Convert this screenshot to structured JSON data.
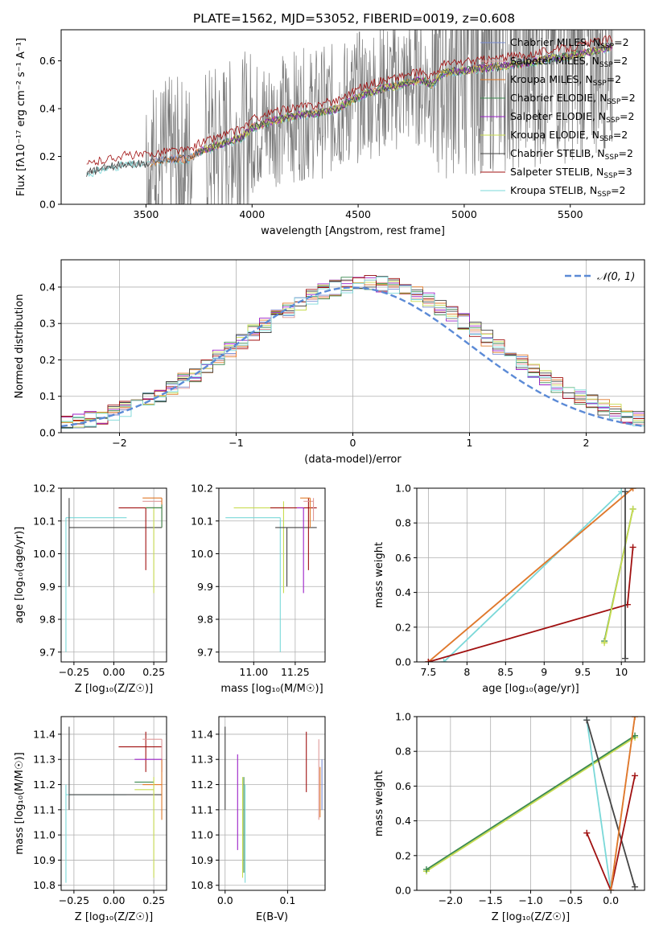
{
  "figure_title": "PLATE=1562, MJD=53052, FIBERID=0019, z=0.608",
  "colors": {
    "chabrier_miles": "#7b8fd6",
    "salpeter_miles": "#e09a9a",
    "kroupa_miles": "#e07a2a",
    "chabrier_elodie": "#3c8a50",
    "salpeter_elodie": "#9b20c8",
    "kroupa_elodie": "#c8dc50",
    "chabrier_stelib": "#454545",
    "salpeter_stelib": "#a01010",
    "kroupa_stelib": "#7ad8d8",
    "data": "#7a7a7a",
    "normal": "#5b8ad6"
  },
  "legend_spectrum": [
    {
      "key": "chabrier_miles",
      "prefix": "Chabrier MILES, N",
      "sub": "SSP",
      "suffix": "=2"
    },
    {
      "key": "salpeter_miles",
      "prefix": "Salpeter MILES, N",
      "sub": "SSP",
      "suffix": "=2"
    },
    {
      "key": "kroupa_miles",
      "prefix": "Kroupa MILES, N",
      "sub": "SSP",
      "suffix": "=2"
    },
    {
      "key": "chabrier_elodie",
      "prefix": "Chabrier ELODIE, N",
      "sub": "SSP",
      "suffix": "=2"
    },
    {
      "key": "salpeter_elodie",
      "prefix": "Salpeter ELODIE, N",
      "sub": "SSP",
      "suffix": "=2"
    },
    {
      "key": "kroupa_elodie",
      "prefix": "Kroupa ELODIE, N",
      "sub": "SSP",
      "suffix": "=2"
    },
    {
      "key": "chabrier_stelib",
      "prefix": "Chabrier STELIB, N",
      "sub": "SSP",
      "suffix": "=2"
    },
    {
      "key": "salpeter_stelib",
      "prefix": "Salpeter STELIB, N",
      "sub": "SSP",
      "suffix": "=3"
    },
    {
      "key": "kroupa_stelib",
      "prefix": "Kroupa STELIB, N",
      "sub": "SSP",
      "suffix": "=2"
    }
  ],
  "chart_data": [
    {
      "id": "spectrum",
      "type": "line",
      "xlabel": "wavelength [Angstrom, rest frame]",
      "ylabel": "Flux [fλ10⁻¹⁷ erg cm⁻² s⁻¹ A⁻¹]",
      "xlim": [
        3100,
        5850
      ],
      "ylim": [
        0,
        0.73
      ],
      "xticks": [
        3500,
        4000,
        4500,
        5000,
        5500
      ],
      "yticks": [
        0.0,
        0.2,
        0.4,
        0.6
      ],
      "grid": false,
      "legend": "upper-right",
      "model_continuum": [
        [
          3220,
          0.13
        ],
        [
          3300,
          0.15
        ],
        [
          3400,
          0.17
        ],
        [
          3500,
          0.17
        ],
        [
          3600,
          0.19
        ],
        [
          3700,
          0.19
        ],
        [
          3750,
          0.22
        ],
        [
          3850,
          0.25
        ],
        [
          3950,
          0.28
        ],
        [
          4000,
          0.32
        ],
        [
          4100,
          0.35
        ],
        [
          4200,
          0.37
        ],
        [
          4300,
          0.38
        ],
        [
          4400,
          0.4
        ],
        [
          4500,
          0.45
        ],
        [
          4600,
          0.48
        ],
        [
          4700,
          0.5
        ],
        [
          4800,
          0.52
        ],
        [
          4850,
          0.5
        ],
        [
          4900,
          0.55
        ],
        [
          5000,
          0.56
        ],
        [
          5100,
          0.57
        ],
        [
          5200,
          0.58
        ],
        [
          5300,
          0.59
        ],
        [
          5400,
          0.61
        ],
        [
          5500,
          0.62
        ],
        [
          5600,
          0.64
        ],
        [
          5700,
          0.66
        ]
      ]
    },
    {
      "id": "residuals",
      "type": "histogram",
      "xlabel": "(data-model)/error",
      "ylabel": "Normed distribution",
      "xlim": [
        -2.5,
        2.5
      ],
      "ylim": [
        0,
        0.475
      ],
      "xticks": [
        -2,
        -1,
        0,
        1,
        2
      ],
      "yticks": [
        0.0,
        0.1,
        0.2,
        0.3,
        0.4
      ],
      "grid": true,
      "legend": "upper-right",
      "normal_label": "𝒩(0, 1)",
      "bin_width": 0.1
    },
    {
      "id": "age_vs_Z",
      "type": "scatter",
      "xlabel": "Z [log₁₀(Z/Z☉)]",
      "ylabel": "age  [log₁₀(age/yr)]",
      "xlim": [
        -0.33,
        0.33
      ],
      "ylim": [
        9.67,
        10.2
      ],
      "xticks": [
        -0.25,
        0.0,
        0.25
      ],
      "xticklabels": [
        "−0.25",
        "0.00",
        "0.25"
      ],
      "yticks": [
        9.7,
        9.8,
        9.9,
        10.0,
        10.1,
        10.2
      ],
      "grid": true,
      "errorbars": [
        {
          "key": "kroupa_stelib",
          "x": -0.3,
          "y": 10.11,
          "xlo": -0.3,
          "xhi": 0.08,
          "ylo": 9.7,
          "yhi": 10.11
        },
        {
          "key": "chabrier_stelib",
          "x": -0.28,
          "y": 10.08,
          "xlo": -0.28,
          "xhi": 0.3,
          "ylo": 9.9,
          "yhi": 10.17
        },
        {
          "key": "salpeter_stelib",
          "x": 0.2,
          "y": 10.14,
          "xlo": 0.03,
          "xhi": 0.3,
          "ylo": 9.95,
          "yhi": 10.14
        },
        {
          "key": "kroupa_elodie",
          "x": 0.25,
          "y": 10.14,
          "xlo": 0.2,
          "xhi": 0.3,
          "ylo": 9.88,
          "yhi": 10.14
        },
        {
          "key": "salpeter_miles",
          "x": 0.3,
          "y": 10.16,
          "xlo": 0.18,
          "xhi": 0.3,
          "ylo": 10.08,
          "yhi": 10.17
        },
        {
          "key": "kroupa_miles",
          "x": 0.3,
          "y": 10.17,
          "xlo": 0.18,
          "xhi": 0.3,
          "ylo": 10.08,
          "yhi": 10.17
        },
        {
          "key": "chabrier_elodie",
          "x": 0.3,
          "y": 10.14,
          "xlo": 0.2,
          "xhi": 0.3,
          "ylo": 10.08,
          "yhi": 10.15
        }
      ]
    },
    {
      "id": "age_vs_mass",
      "type": "scatter",
      "xlabel": "mass [log₁₀(M/M☉)]",
      "ylabel": "",
      "xlim": [
        10.79,
        11.43
      ],
      "ylim": [
        9.67,
        10.2
      ],
      "xticks": [
        11.0,
        11.25
      ],
      "xticklabels": [
        "11.00",
        "11.25"
      ],
      "yticks": [
        9.7,
        9.8,
        9.9,
        10.0,
        10.1,
        10.2
      ],
      "grid": true,
      "errorbars": [
        {
          "key": "kroupa_stelib",
          "x": 11.16,
          "y": 10.11,
          "xlo": 10.83,
          "xhi": 11.16,
          "ylo": 9.7,
          "yhi": 10.11
        },
        {
          "key": "kroupa_elodie",
          "x": 11.18,
          "y": 10.14,
          "xlo": 10.88,
          "xhi": 11.18,
          "ylo": 9.88,
          "yhi": 10.16
        },
        {
          "key": "chabrier_stelib",
          "x": 11.2,
          "y": 10.08,
          "xlo": 11.13,
          "xhi": 11.38,
          "ylo": 9.9,
          "yhi": 10.08
        },
        {
          "key": "salpeter_stelib",
          "x": 11.33,
          "y": 10.14,
          "xlo": 11.1,
          "xhi": 11.38,
          "ylo": 9.95,
          "yhi": 10.17
        },
        {
          "key": "salpeter_elodie",
          "x": 11.3,
          "y": 10.14,
          "xlo": 11.26,
          "xhi": 11.3,
          "ylo": 9.88,
          "yhi": 10.14
        },
        {
          "key": "salpeter_miles",
          "x": 11.36,
          "y": 10.16,
          "xlo": 11.3,
          "xhi": 11.36,
          "ylo": 10.1,
          "yhi": 10.17
        },
        {
          "key": "kroupa_miles",
          "x": 11.34,
          "y": 10.17,
          "xlo": 11.28,
          "xhi": 11.34,
          "ylo": 10.08,
          "yhi": 10.17
        }
      ]
    },
    {
      "id": "massweight_vs_age",
      "type": "line",
      "xlabel": "age  [log₁₀(age/yr)]",
      "ylabel": "mass weight",
      "xlim": [
        7.35,
        10.3
      ],
      "ylim": [
        0,
        1
      ],
      "xticks": [
        7.5,
        8.0,
        8.5,
        9.0,
        9.5,
        10.0
      ],
      "yticks": [
        0.0,
        0.2,
        0.4,
        0.6,
        0.8,
        1.0
      ],
      "grid": true,
      "series": [
        {
          "key": "kroupa_stelib",
          "points": [
            [
              7.7,
              0.0
            ],
            [
              10.0,
              0.98
            ]
          ]
        },
        {
          "key": "salpeter_miles",
          "points": [
            [
              7.5,
              0.0
            ],
            [
              10.15,
              1.0
            ]
          ]
        },
        {
          "key": "kroupa_miles",
          "points": [
            [
              7.5,
              0.0
            ],
            [
              10.15,
              1.0
            ]
          ]
        },
        {
          "key": "salpeter_stelib",
          "points": [
            [
              7.5,
              0.0
            ],
            [
              10.08,
              0.33
            ],
            [
              10.15,
              0.66
            ]
          ]
        },
        {
          "key": "chabrier_elodie",
          "points": [
            [
              9.78,
              0.12
            ],
            [
              10.15,
              0.88
            ]
          ]
        },
        {
          "key": "kroupa_elodie",
          "points": [
            [
              9.78,
              0.11
            ],
            [
              10.15,
              0.88
            ]
          ]
        },
        {
          "key": "chabrier_stelib",
          "points": [
            [
              10.05,
              0.02
            ],
            [
              10.05,
              0.98
            ]
          ]
        }
      ]
    },
    {
      "id": "mass_vs_Z",
      "type": "scatter",
      "xlabel": "Z [log₁₀(Z/Z☉)]",
      "ylabel": "mass [log₁₀(M/M☉)]",
      "xlim": [
        -0.33,
        0.33
      ],
      "ylim": [
        10.78,
        11.47
      ],
      "xticks": [
        -0.25,
        0.0,
        0.25
      ],
      "xticklabels": [
        "−0.25",
        "0.00",
        "0.25"
      ],
      "yticks": [
        10.8,
        10.9,
        11.0,
        11.1,
        11.2,
        11.3,
        11.4
      ],
      "grid": true,
      "errorbars": [
        {
          "key": "kroupa_stelib",
          "x": -0.3,
          "y": 11.16,
          "xlo": -0.3,
          "xhi": 0.08,
          "ylo": 10.81,
          "yhi": 11.2
        },
        {
          "key": "chabrier_stelib",
          "x": -0.28,
          "y": 11.16,
          "xlo": -0.28,
          "xhi": 0.3,
          "ylo": 11.1,
          "yhi": 11.43
        },
        {
          "key": "salpeter_stelib",
          "x": 0.2,
          "y": 11.35,
          "xlo": 0.03,
          "xhi": 0.3,
          "ylo": 11.25,
          "yhi": 11.41
        },
        {
          "key": "salpeter_miles",
          "x": 0.3,
          "y": 11.38,
          "xlo": 0.18,
          "xhi": 0.3,
          "ylo": 11.3,
          "yhi": 11.38
        },
        {
          "key": "salpeter_elodie",
          "x": 0.3,
          "y": 11.3,
          "xlo": 0.13,
          "xhi": 0.3,
          "ylo": 11.25,
          "yhi": 11.3
        },
        {
          "key": "kroupa_miles",
          "x": 0.3,
          "y": 11.2,
          "xlo": 0.18,
          "xhi": 0.3,
          "ylo": 11.06,
          "yhi": 11.3
        },
        {
          "key": "chabrier_elodie",
          "x": 0.25,
          "y": 11.21,
          "xlo": 0.13,
          "xhi": 0.25,
          "ylo": 11.21,
          "yhi": 11.21
        },
        {
          "key": "kroupa_elodie",
          "x": 0.25,
          "y": 11.18,
          "xlo": 0.13,
          "xhi": 0.25,
          "ylo": 10.83,
          "yhi": 11.23
        }
      ]
    },
    {
      "id": "mass_vs_ebv",
      "type": "scatter",
      "xlabel": "E(B-V)",
      "ylabel": "",
      "xlim": [
        -0.01,
        0.16
      ],
      "ylim": [
        10.78,
        11.47
      ],
      "xticks": [
        0.0,
        0.1
      ],
      "xticklabels": [
        "0.0",
        "0.1"
      ],
      "yticks": [
        10.8,
        10.9,
        11.0,
        11.1,
        11.2,
        11.3,
        11.4
      ],
      "grid": true,
      "errorbars": [
        {
          "key": "chabrier_stelib",
          "x": 0.0,
          "y": 11.3,
          "ylo": 11.1,
          "yhi": 11.43
        },
        {
          "key": "salpeter_elodie",
          "x": 0.02,
          "y": 11.1,
          "ylo": 10.94,
          "yhi": 11.32
        },
        {
          "key": "kroupa_elodie",
          "x": 0.028,
          "y": 11.0,
          "ylo": 10.83,
          "yhi": 11.23
        },
        {
          "key": "chabrier_elodie",
          "x": 0.03,
          "y": 11.05,
          "ylo": 10.85,
          "yhi": 11.23
        },
        {
          "key": "kroupa_stelib",
          "x": 0.032,
          "y": 11.0,
          "ylo": 10.81,
          "yhi": 11.2
        },
        {
          "key": "salpeter_stelib",
          "x": 0.13,
          "y": 11.3,
          "ylo": 11.17,
          "yhi": 11.41
        },
        {
          "key": "salpeter_miles",
          "x": 0.15,
          "y": 11.2,
          "ylo": 11.06,
          "yhi": 11.38
        },
        {
          "key": "kroupa_miles",
          "x": 0.152,
          "y": 11.18,
          "ylo": 11.07,
          "yhi": 11.27
        },
        {
          "key": "chabrier_miles",
          "x": 0.155,
          "y": 11.2,
          "ylo": 11.1,
          "yhi": 11.3
        }
      ]
    },
    {
      "id": "massweight_vs_Z",
      "type": "line",
      "xlabel": "Z [log₁₀(Z/Z☉)]",
      "ylabel": "mass weight",
      "xlim": [
        -2.42,
        0.42
      ],
      "ylim": [
        0,
        1
      ],
      "xticks": [
        -2.0,
        -1.5,
        -1.0,
        -0.5,
        0.0
      ],
      "xticklabels": [
        "−2.0",
        "−1.5",
        "−1.0",
        "−0.5",
        "0.0"
      ],
      "yticks": [
        0.0,
        0.2,
        0.4,
        0.6,
        0.8,
        1.0
      ],
      "grid": true,
      "series": [
        {
          "key": "kroupa_elodie",
          "points": [
            [
              -2.3,
              0.11
            ],
            [
              0.3,
              0.88
            ]
          ]
        },
        {
          "key": "chabrier_elodie",
          "points": [
            [
              -2.3,
              0.12
            ],
            [
              0.3,
              0.89
            ]
          ]
        },
        {
          "key": "kroupa_stelib",
          "points": [
            [
              -0.3,
              0.98
            ],
            [
              0.0,
              0.0
            ]
          ]
        },
        {
          "key": "chabrier_stelib",
          "points": [
            [
              -0.3,
              0.98
            ],
            [
              0.3,
              0.02
            ]
          ]
        },
        {
          "key": "salpeter_stelib",
          "points": [
            [
              -0.3,
              0.33
            ],
            [
              0.0,
              0.0
            ],
            [
              0.3,
              0.66
            ]
          ]
        },
        {
          "key": "salpeter_miles",
          "points": [
            [
              0.0,
              0.0
            ],
            [
              0.3,
              1.0
            ]
          ]
        },
        {
          "key": "kroupa_miles",
          "points": [
            [
              0.0,
              0.0
            ],
            [
              0.3,
              1.0
            ]
          ]
        }
      ]
    }
  ]
}
